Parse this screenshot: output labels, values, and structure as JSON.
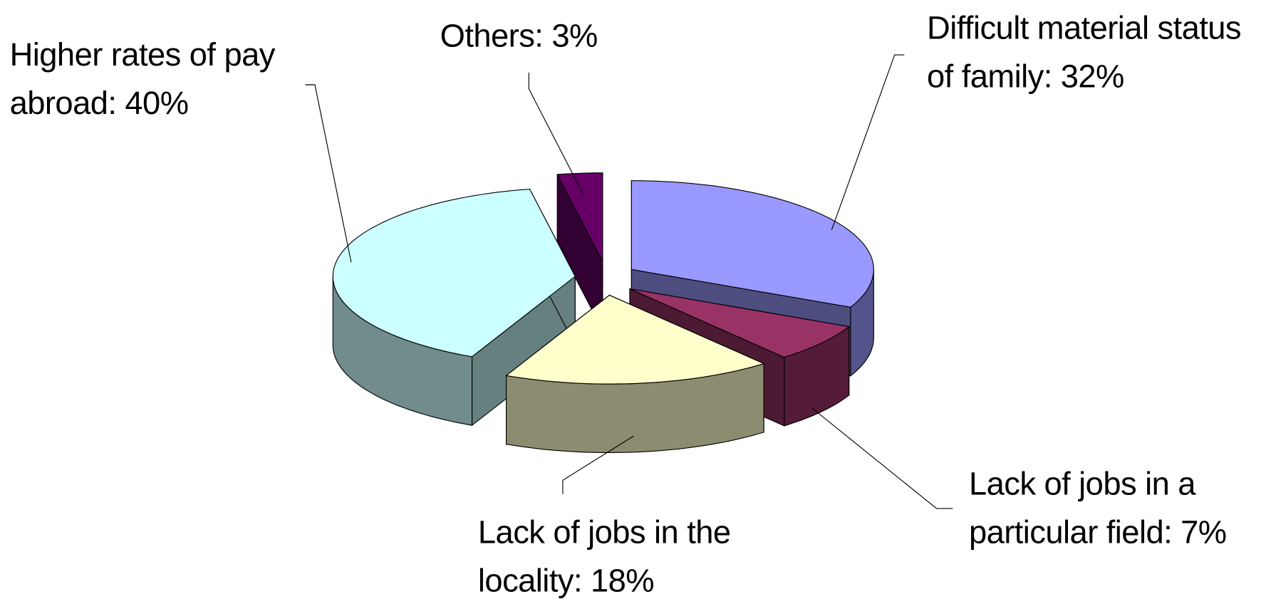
{
  "chart_data": {
    "type": "pie3d",
    "categories": [
      "Difficult material status of family: 32%",
      "Lack of jobs in a particular field: 7%",
      "Lack of jobs in the locality: 18%",
      "Higher rates of pay abroad: 40%",
      "Others: 3%"
    ],
    "values": [
      32,
      7,
      18,
      40,
      3
    ],
    "colors": [
      "#9999ff",
      "#993366",
      "#ffffcc",
      "#ccffff",
      "#660066"
    ]
  }
}
